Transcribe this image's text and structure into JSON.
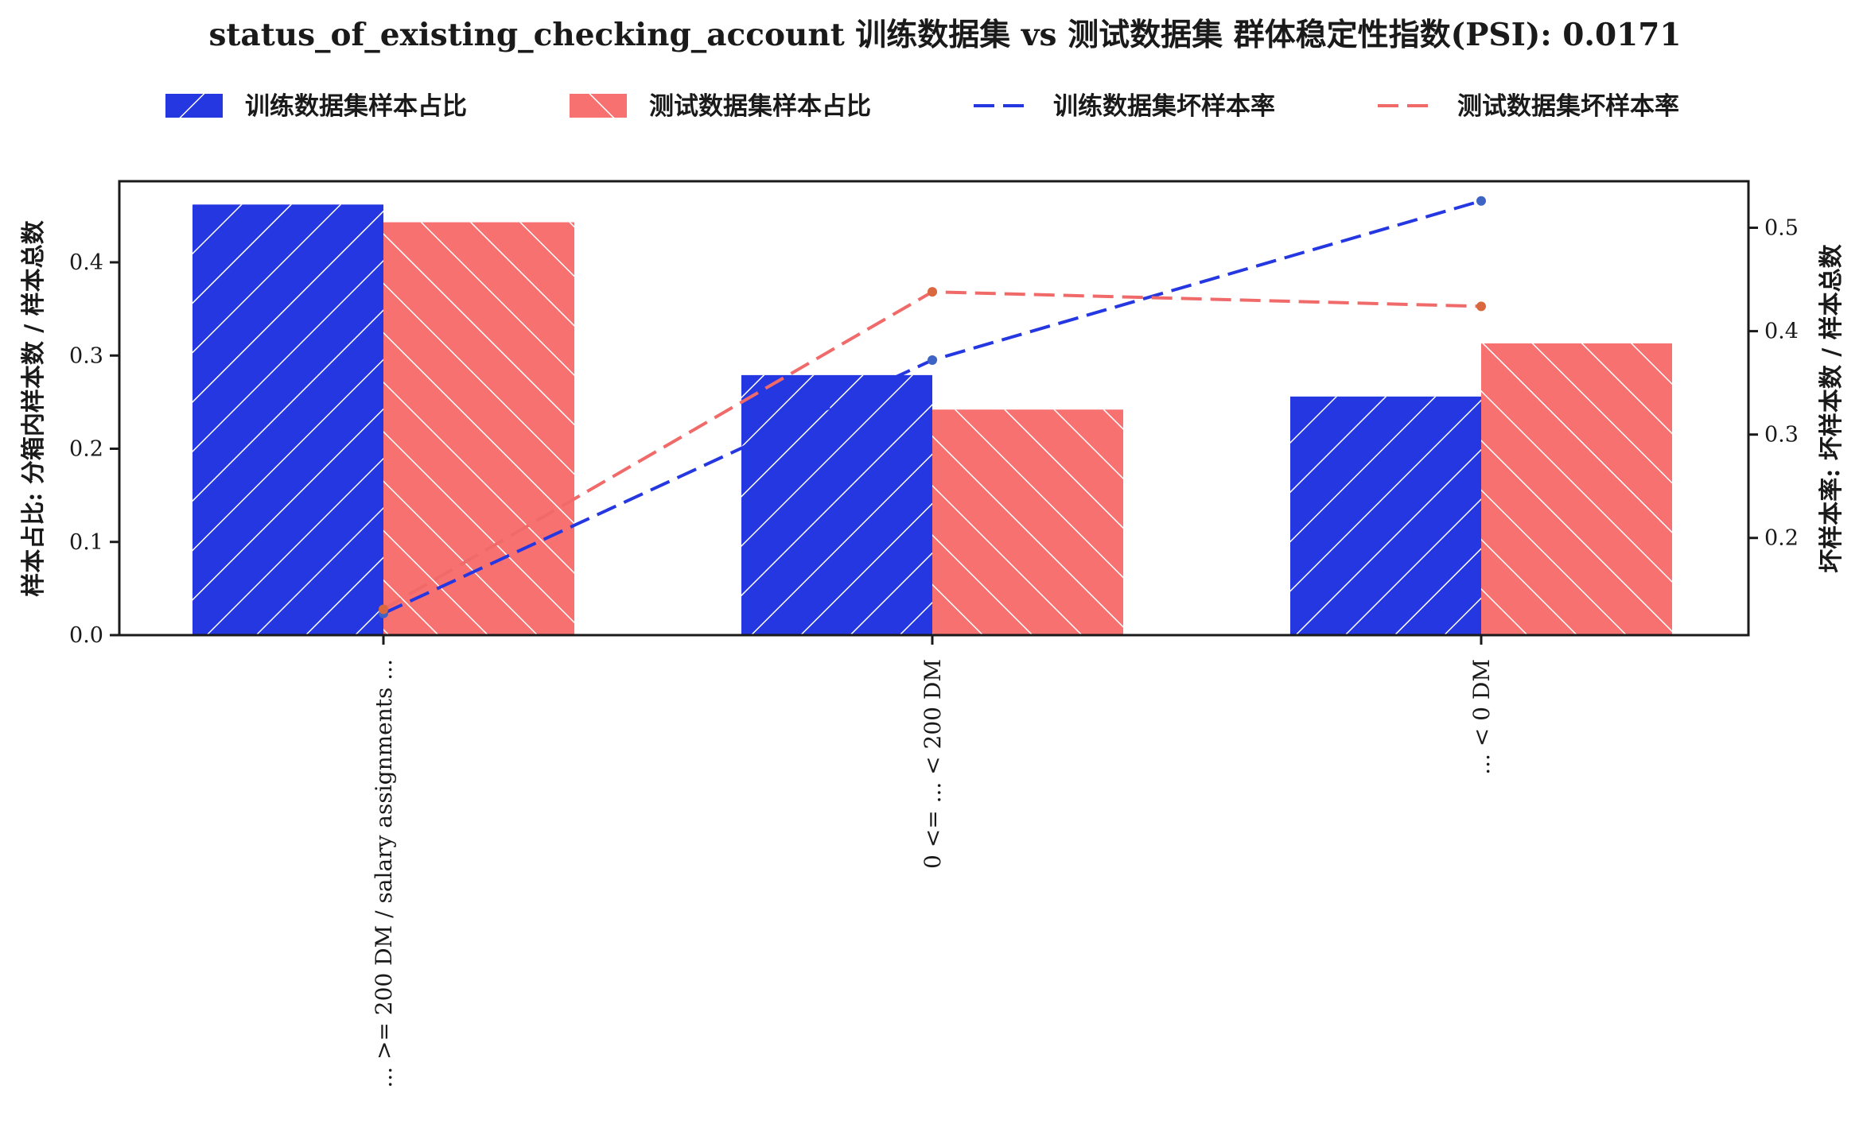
{
  "chart_data": {
    "type": "bar",
    "title": "status_of_existing_checking_account 训练数据集 vs 测试数据集 群体稳定性指数(PSI): 0.0171",
    "categories": [
      "... >= 200 DM / salary assignments ...",
      "0 <= ... < 200 DM",
      "... < 0 DM"
    ],
    "series": [
      {
        "name": "训练数据集样本占比",
        "kind": "bar",
        "axis": "left",
        "color": "#2537e0",
        "hatch": "forward",
        "values": [
          0.462,
          0.279,
          0.256
        ]
      },
      {
        "name": "测试数据集样本占比",
        "kind": "bar",
        "axis": "left",
        "color": "#f87171",
        "hatch": "backward",
        "values": [
          0.443,
          0.242,
          0.313
        ]
      },
      {
        "name": "训练数据集坏样本率",
        "kind": "line",
        "axis": "right",
        "color": "#2537e0",
        "marker_color": "#3d63c4",
        "values": [
          0.127,
          0.372,
          0.526
        ]
      },
      {
        "name": "测试数据集坏样本率",
        "kind": "line",
        "axis": "right",
        "color": "#f06a6a",
        "marker_color": "#d9683e",
        "values": [
          0.131,
          0.438,
          0.424
        ]
      }
    ],
    "ylabel": "样本占比: 分箱内样本数 / 样本总数",
    "ylabel_right": "坏样本率: 坏样本数 / 样本总数",
    "ylim": [
      0,
      0.487
    ],
    "ylim_right": [
      0.106,
      0.545
    ],
    "yticks": [
      0.0,
      0.1,
      0.2,
      0.3,
      0.4
    ],
    "yticks_right": [
      0.2,
      0.3,
      0.4,
      0.5
    ],
    "grid": false,
    "legend_position": "top"
  }
}
